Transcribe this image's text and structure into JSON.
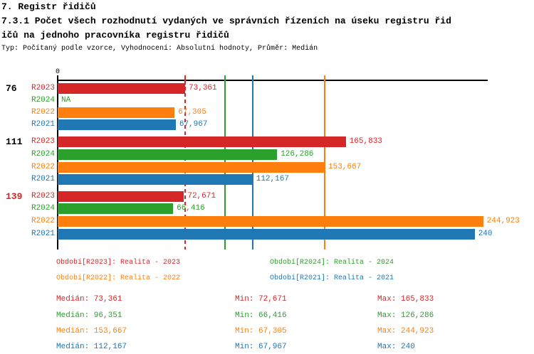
{
  "header": {
    "section_title": "7. Registr řidičů",
    "title_line1": "7.3.1 Počet všech rozhodnutí vydaných ve správních řízeních na úseku registru řid",
    "title_line2": "ičů na jednoho pracovníka registru řidičů",
    "subtitle": "Typ: Počítaný podle vzorce, Vyhodnocení: Absolutní hodnoty, Průměr: Medián"
  },
  "colors": {
    "r2023": "#d62728",
    "r2024": "#2ca02c",
    "r2022": "#ff7f0e",
    "r2021": "#1f77b4",
    "axis": "#000000"
  },
  "chart_data": {
    "type": "bar",
    "orientation": "horizontal",
    "title": "7.3.1 Počet všech rozhodnutí vydaných ve správních řízeních na úseku registru řidičů na jednoho pracovníka registru řidičů",
    "note": "value labels use Czech decimal comma",
    "axis": {
      "min": 0,
      "max": 247.5,
      "zero_label": "0"
    },
    "series_order": [
      "R2023",
      "R2024",
      "R2022",
      "R2021"
    ],
    "groups": [
      {
        "label": "76",
        "label_color": "#000000",
        "bars": [
          {
            "series": "R2023",
            "value": 73.361,
            "label": "73,361",
            "color": "#d62728"
          },
          {
            "series": "R2024",
            "value": null,
            "label": "NA",
            "color": "#2ca02c"
          },
          {
            "series": "R2022",
            "value": 67.305,
            "label": "67,305",
            "color": "#ff7f0e"
          },
          {
            "series": "R2021",
            "value": 67.967,
            "label": "67,967",
            "color": "#1f77b4"
          }
        ]
      },
      {
        "label": "111",
        "label_color": "#000000",
        "bars": [
          {
            "series": "R2023",
            "value": 165.833,
            "label": "165,833",
            "color": "#d62728"
          },
          {
            "series": "R2024",
            "value": 126.286,
            "label": "126,286",
            "color": "#2ca02c"
          },
          {
            "series": "R2022",
            "value": 153.667,
            "label": "153,667",
            "color": "#ff7f0e"
          },
          {
            "series": "R2021",
            "value": 112.167,
            "label": "112,167",
            "color": "#1f77b4"
          }
        ]
      },
      {
        "label": "139",
        "label_color": "#d62728",
        "bars": [
          {
            "series": "R2023",
            "value": 72.671,
            "label": "72,671",
            "color": "#d62728"
          },
          {
            "series": "R2024",
            "value": 66.416,
            "label": "66,416",
            "color": "#2ca02c"
          },
          {
            "series": "R2022",
            "value": 244.923,
            "label": "244,923",
            "color": "#ff7f0e"
          },
          {
            "series": "R2021",
            "value": 240,
            "label": "240",
            "color": "#1f77b4"
          }
        ]
      }
    ],
    "median_lines": [
      {
        "series": "R2023",
        "value": 73.361,
        "color": "#d62728",
        "style": "dashed"
      },
      {
        "series": "R2024",
        "value": 96.351,
        "color": "#2ca02c",
        "style": "solid"
      },
      {
        "series": "R2021",
        "value": 112.167,
        "color": "#1f77b4",
        "style": "solid"
      },
      {
        "series": "R2022",
        "value": 153.667,
        "color": "#ff7f0e",
        "style": "solid"
      }
    ]
  },
  "legend": {
    "items": [
      {
        "text": "Období[R2023]: Realita - 2023",
        "color": "#d62728"
      },
      {
        "text": "Období[R2024]: Realita - 2024",
        "color": "#2ca02c"
      },
      {
        "text": "Období[R2022]: Realita - 2022",
        "color": "#ff7f0e"
      },
      {
        "text": "Období[R2021]: Realita - 2021",
        "color": "#1f77b4"
      }
    ]
  },
  "stats": {
    "rows": [
      {
        "median": "Medián: 73,361",
        "min": "Min: 72,671",
        "max": "Max: 165,833",
        "color": "#d62728"
      },
      {
        "median": "Medián: 96,351",
        "min": "Min: 66,416",
        "max": "Max: 126,286",
        "color": "#2ca02c"
      },
      {
        "median": "Medián: 153,667",
        "min": "Min: 67,305",
        "max": "Max: 244,923",
        "color": "#ff7f0e"
      },
      {
        "median": "Medián: 112,167",
        "min": "Min: 67,967",
        "max": "Max: 240",
        "color": "#1f77b4"
      }
    ]
  }
}
